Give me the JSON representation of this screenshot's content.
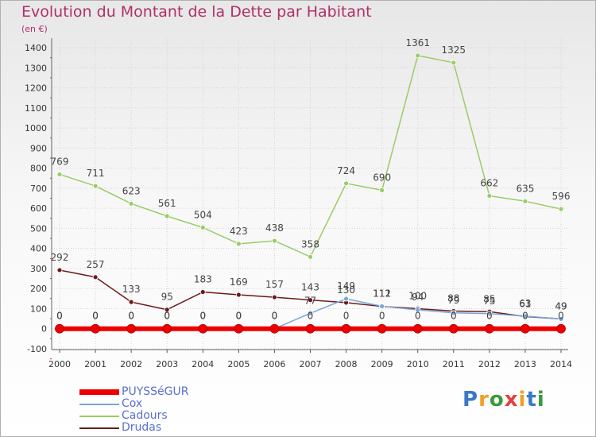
{
  "header": {
    "title": "Evolution du Montant de la Dette par Habitant",
    "subtitle": "(en €)"
  },
  "logo": {
    "text": "Proxiti",
    "colors": [
      "#3a78c8",
      "#f0a020",
      "#3a9a3a",
      "#e04040",
      "#f0a020",
      "#3a78c8",
      "#3a9a3a"
    ]
  },
  "chart_data": {
    "type": "line",
    "x": [
      "2000",
      "2001",
      "2002",
      "2003",
      "2004",
      "2005",
      "2006",
      "2007",
      "2008",
      "2009",
      "2010",
      "2011",
      "2012",
      "2013",
      "2014"
    ],
    "yticks": [
      "-100",
      "0",
      "100",
      "200",
      "300",
      "400",
      "500",
      "600",
      "700",
      "800",
      "900",
      "1000",
      "1100",
      "1200",
      "1300",
      "1400"
    ],
    "ylim": [
      -100,
      1400
    ],
    "grid": true,
    "legend_position": "bottom-left",
    "series": [
      {
        "name": "PUYSSéGUR",
        "color": "#ee0000",
        "values": [
          0,
          0,
          0,
          0,
          0,
          0,
          0,
          0,
          0,
          0,
          0,
          0,
          0,
          0,
          0
        ],
        "labels": [
          "0",
          "0",
          "0",
          "0",
          "0",
          "0",
          "0",
          "0",
          "0",
          "0",
          "0",
          "0",
          "0",
          "0",
          "0"
        ]
      },
      {
        "name": "Cox",
        "color": "#7aa6d8",
        "values": [
          0,
          0,
          0,
          0,
          0,
          0,
          0,
          77,
          149,
          112,
          94,
          79,
          75,
          63,
          49
        ],
        "labels": [
          "0",
          "0",
          "0",
          "0",
          "0",
          "0",
          "0",
          "77",
          "149",
          "112",
          "94",
          "79",
          "75",
          "63",
          "49"
        ]
      },
      {
        "name": "Cadours",
        "color": "#99cc66",
        "values": [
          769,
          711,
          623,
          561,
          504,
          423,
          438,
          358,
          724,
          690,
          1361,
          1325,
          662,
          635,
          596
        ],
        "labels": [
          "769",
          "711",
          "623",
          "561",
          "504",
          "423",
          "438",
          "358",
          "724",
          "690",
          "1361",
          "1325",
          "662",
          "635",
          "596"
        ]
      },
      {
        "name": "Drudas",
        "color": "#6b1a1a",
        "values": [
          292,
          257,
          133,
          95,
          183,
          169,
          157,
          143,
          130,
          111,
          100,
          88,
          85,
          61,
          49
        ],
        "labels": [
          "292",
          "257",
          "133",
          "95",
          "183",
          "169",
          "157",
          "143",
          "130",
          "111",
          "100",
          "88",
          "85",
          "61",
          "49"
        ]
      }
    ]
  }
}
